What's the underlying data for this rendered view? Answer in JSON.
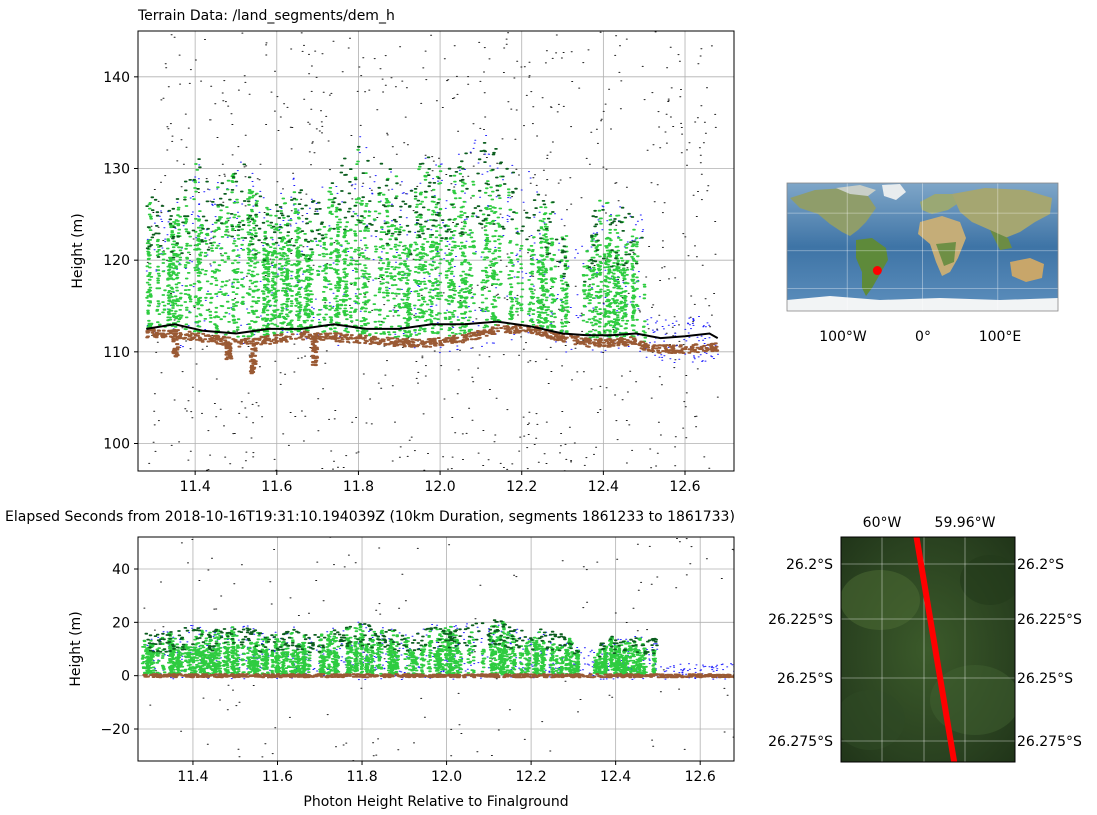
{
  "figure": {
    "top_title": "Terrain Data: /land_segments/dem_h",
    "mid_caption": "Elapsed Seconds from 2018-10-16T19:31:10.194039Z (10km Duration, segments 1861233 to 1861733)",
    "bottom_xlabel": "Photon Height Relative to Finalground"
  },
  "colors": {
    "noise": "#1a1a1a",
    "unclassified": "#1c1cff",
    "ground": "#9a5a34",
    "canopy": "#2ecc40",
    "top_of_canopy": "#0b5d1e",
    "terrain_line": "#000000",
    "grid": "#b0b0b0",
    "track": "#ff0000",
    "location_marker": "#ff0000"
  },
  "chart_data": [
    {
      "type": "scatter",
      "name": "top",
      "title": "Terrain Data: /land_segments/dem_h",
      "xlabel": "",
      "ylabel": "Height (m)",
      "xlim": [
        11.26,
        12.72
      ],
      "ylim": [
        97,
        145
      ],
      "xticks": [
        11.4,
        11.6,
        11.8,
        12.0,
        12.2,
        12.4,
        12.6
      ],
      "xtick_labels": [
        "11.4",
        "11.6",
        "11.8",
        "12.0",
        "12.2",
        "12.4",
        "12.6"
      ],
      "yticks": [
        100,
        110,
        120,
        130,
        140
      ],
      "ytick_labels": [
        "100",
        "110",
        "120",
        "130",
        "140"
      ],
      "grid": true,
      "terrain_line": {
        "x": [
          11.28,
          11.35,
          11.42,
          11.5,
          11.58,
          11.66,
          11.74,
          11.82,
          11.9,
          11.98,
          12.06,
          12.14,
          12.22,
          12.3,
          12.36,
          12.42,
          12.48,
          12.54,
          12.6,
          12.66,
          12.68
        ],
        "y": [
          112.5,
          113.0,
          112.3,
          112.0,
          112.5,
          112.5,
          113.0,
          112.5,
          112.5,
          113.0,
          113.0,
          113.3,
          112.8,
          112.0,
          111.8,
          111.8,
          112.0,
          111.5,
          111.7,
          112.0,
          111.5
        ]
      },
      "ground_profile": {
        "x": [
          11.28,
          11.35,
          11.42,
          11.5,
          11.58,
          11.66,
          11.74,
          11.82,
          11.9,
          11.98,
          12.06,
          12.14,
          12.22,
          12.3,
          12.36,
          12.42,
          12.48,
          12.5,
          12.54,
          12.6,
          12.66,
          12.68
        ],
        "y": [
          112.0,
          112.0,
          111.5,
          111.0,
          111.3,
          111.8,
          111.6,
          111.3,
          111.0,
          111.0,
          111.5,
          112.5,
          112.5,
          111.5,
          111.0,
          111.0,
          111.2,
          110.5,
          110.3,
          110.3,
          110.5,
          110.5
        ]
      },
      "canopy_top_envelope": {
        "x": [
          11.28,
          11.32,
          11.36,
          11.4,
          11.44,
          11.48,
          11.52,
          11.56,
          11.6,
          11.64,
          11.68,
          11.72,
          11.76,
          11.8,
          11.84,
          11.88,
          11.92,
          11.96,
          12.0,
          12.04,
          12.08,
          12.12,
          12.16,
          12.2,
          12.24,
          12.28,
          12.31,
          12.35,
          12.38,
          12.42,
          12.46,
          12.5
        ],
        "y": [
          128,
          126,
          127,
          132,
          128,
          129,
          131,
          127,
          127,
          129,
          126,
          129,
          131,
          134,
          131,
          130,
          127,
          132,
          130,
          131,
          133,
          134,
          130,
          130,
          128,
          127,
          122,
          121,
          127,
          126,
          126,
          124
        ]
      }
    },
    {
      "type": "scatter",
      "name": "bottom",
      "title": "",
      "xlabel": "Photon Height Relative to Finalground",
      "ylabel": "Height (m)",
      "xlim": [
        11.27,
        12.68
      ],
      "ylim": [
        -32,
        52
      ],
      "xticks": [
        11.4,
        11.6,
        11.8,
        12.0,
        12.2,
        12.4,
        12.6
      ],
      "xtick_labels": [
        "11.4",
        "11.6",
        "11.8",
        "12.0",
        "12.2",
        "12.4",
        "12.6"
      ],
      "yticks": [
        -20,
        0,
        20,
        40
      ],
      "ytick_labels": [
        "−20",
        "0",
        "20",
        "40"
      ],
      "grid": true,
      "canopy_top_envelope": {
        "x": [
          11.28,
          11.32,
          11.36,
          11.4,
          11.44,
          11.48,
          11.52,
          11.56,
          11.6,
          11.64,
          11.68,
          11.72,
          11.76,
          11.8,
          11.84,
          11.88,
          11.92,
          11.96,
          12.0,
          12.04,
          12.08,
          12.12,
          12.16,
          12.2,
          12.24,
          12.28,
          12.31,
          12.35,
          12.38,
          12.42,
          12.46,
          12.5
        ],
        "y": [
          17,
          16,
          17,
          19,
          17,
          18,
          19,
          16,
          16,
          18,
          15,
          17,
          18,
          20,
          18,
          17,
          15,
          19,
          18,
          19,
          20,
          21,
          18,
          18,
          17,
          16,
          10,
          10,
          15,
          14,
          15,
          14
        ]
      }
    },
    {
      "type": "map",
      "name": "world-overview",
      "xticks": [
        "100°W",
        "0°",
        "100°E"
      ],
      "marker": {
        "lon": -59.98,
        "lat": -26.24
      }
    },
    {
      "type": "map",
      "name": "track-detail",
      "top_ticks": [
        "60°W",
        "59.96°W"
      ],
      "lat_ticks": [
        "26.2°S",
        "26.225°S",
        "26.25°S",
        "26.275°S"
      ],
      "track": {
        "start": [
          -59.985,
          -26.18
        ],
        "end": [
          -59.965,
          -26.285
        ]
      }
    }
  ]
}
